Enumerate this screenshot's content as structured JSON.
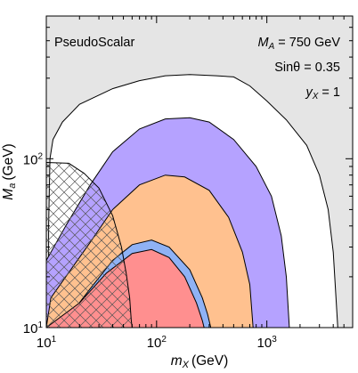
{
  "chart_data": {
    "type": "area",
    "title": "",
    "xlabel": {
      "main": "m",
      "sub": "X",
      "unit": "(GeV)"
    },
    "ylabel": {
      "main": "M",
      "sub": "a",
      "unit": "(GeV)"
    },
    "xscale": "log",
    "yscale": "log",
    "xlim": [
      10,
      6000
    ],
    "ylim": [
      10,
      700
    ],
    "x_ticks": [
      {
        "value": 10,
        "base": "10",
        "exp": "1"
      },
      {
        "value": 100,
        "base": "10",
        "exp": "2"
      },
      {
        "value": 1000,
        "base": "10",
        "exp": "3"
      }
    ],
    "y_ticks": [
      {
        "value": 10,
        "base": "10",
        "exp": "1"
      },
      {
        "value": 100,
        "base": "10",
        "exp": "2"
      }
    ],
    "annotations": {
      "model": "PseudoScalar",
      "MA": {
        "sym": "M",
        "sub": "A",
        "rest": " = 750 GeV"
      },
      "sin": "Sinθ = 0.35",
      "yX": {
        "sym": "y",
        "sub": "X",
        "rest": " = 1"
      }
    },
    "background_color": "#e5e5e5",
    "series": [
      {
        "key": "white",
        "color": "#ffffff",
        "points": [
          [
            10.5,
            10
          ],
          [
            10.5,
            40
          ],
          [
            10.8,
            100
          ],
          [
            11.5,
            130
          ],
          [
            14,
            165
          ],
          [
            20,
            210
          ],
          [
            40,
            260
          ],
          [
            70,
            290
          ],
          [
            120,
            310
          ],
          [
            200,
            315
          ],
          [
            350,
            310
          ],
          [
            500,
            305
          ],
          [
            700,
            270
          ],
          [
            1000,
            220
          ],
          [
            1500,
            170
          ],
          [
            2300,
            120
          ],
          [
            3000,
            80
          ],
          [
            3600,
            50
          ],
          [
            4000,
            28
          ],
          [
            4400,
            10
          ]
        ]
      },
      {
        "key": "purple",
        "color": "#b5a2ff",
        "points": [
          [
            10,
            10
          ],
          [
            10,
            25
          ],
          [
            15,
            40
          ],
          [
            25,
            70
          ],
          [
            40,
            110
          ],
          [
            70,
            150
          ],
          [
            120,
            172
          ],
          [
            200,
            175
          ],
          [
            300,
            165
          ],
          [
            500,
            130
          ],
          [
            800,
            90
          ],
          [
            1100,
            60
          ],
          [
            1350,
            35
          ],
          [
            1500,
            20
          ],
          [
            1600,
            10
          ]
        ]
      },
      {
        "key": "orange",
        "color": "#ffc18f",
        "points": [
          [
            10,
            10
          ],
          [
            11,
            15
          ],
          [
            15,
            20
          ],
          [
            25,
            32
          ],
          [
            40,
            50
          ],
          [
            70,
            70
          ],
          [
            120,
            80
          ],
          [
            180,
            78
          ],
          [
            300,
            65
          ],
          [
            450,
            45
          ],
          [
            600,
            28
          ],
          [
            700,
            18
          ],
          [
            750,
            10
          ]
        ]
      },
      {
        "key": "blue",
        "color": "#8fb2f5",
        "points": [
          [
            10,
            10
          ],
          [
            15,
            11
          ],
          [
            25,
            17
          ],
          [
            40,
            25
          ],
          [
            60,
            31
          ],
          [
            90,
            33
          ],
          [
            130,
            30
          ],
          [
            200,
            22
          ],
          [
            260,
            15
          ],
          [
            290,
            12
          ],
          [
            310,
            10
          ]
        ]
      },
      {
        "key": "red",
        "color": "#ff8f8f",
        "points": [
          [
            10,
            10
          ],
          [
            20,
            14
          ],
          [
            35,
            21
          ],
          [
            60,
            27.5
          ],
          [
            90,
            29
          ],
          [
            130,
            26
          ],
          [
            180,
            20
          ],
          [
            230,
            14
          ],
          [
            260,
            11
          ],
          [
            270,
            10
          ]
        ]
      }
    ],
    "hatch_region": {
      "points": [
        [
          10,
          95
        ],
        [
          16,
          94
        ],
        [
          22,
          82
        ],
        [
          30,
          67
        ],
        [
          40,
          46
        ],
        [
          48,
          30
        ],
        [
          53,
          21
        ],
        [
          57,
          15
        ],
        [
          59,
          11
        ],
        [
          60,
          10
        ],
        [
          10,
          10
        ]
      ]
    }
  }
}
